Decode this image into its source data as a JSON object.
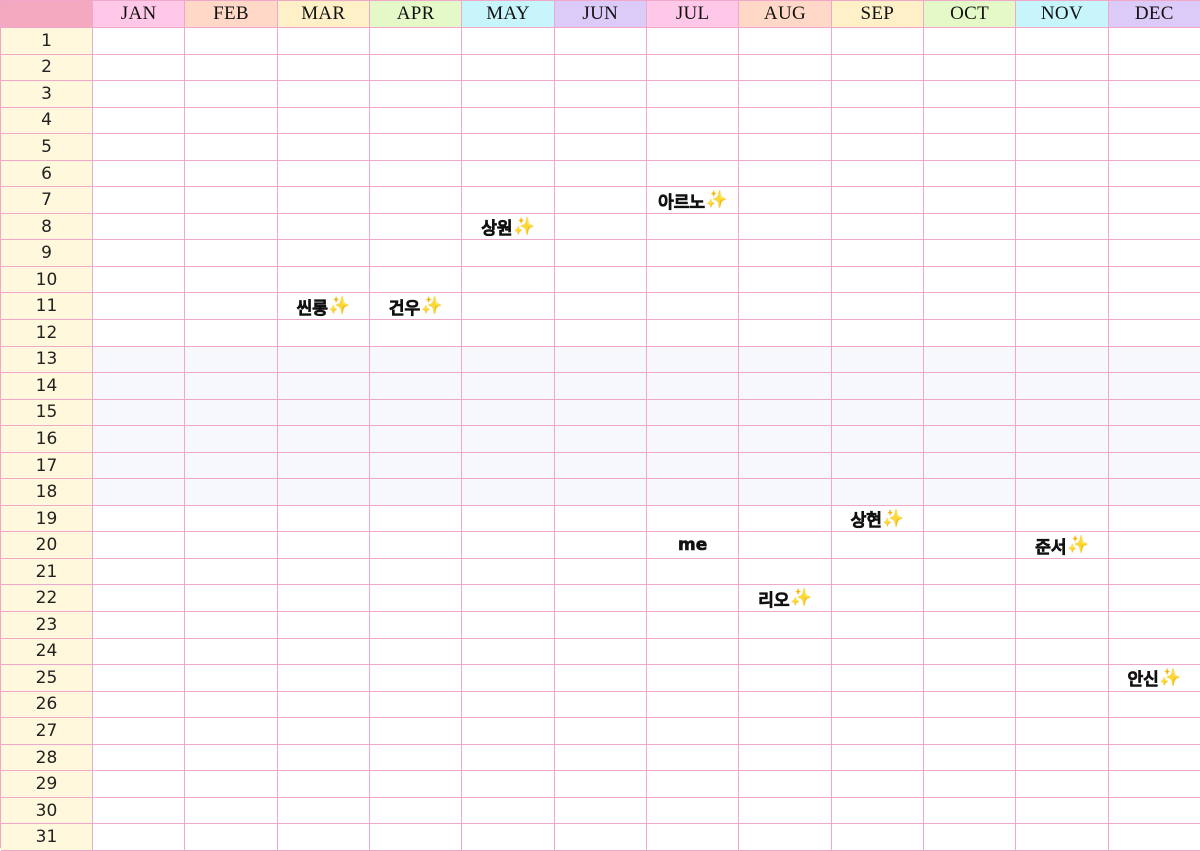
{
  "months": [
    {
      "label": "JAN",
      "color": "#ffc8e8"
    },
    {
      "label": "FEB",
      "color": "#ffd8c8"
    },
    {
      "label": "MAR",
      "color": "#fff0c8"
    },
    {
      "label": "APR",
      "color": "#e4f8c8"
    },
    {
      "label": "MAY",
      "color": "#c8f4fc"
    },
    {
      "label": "JUN",
      "color": "#dccaf8"
    },
    {
      "label": "JUL",
      "color": "#ffc8e8"
    },
    {
      "label": "AUG",
      "color": "#ffd8c8"
    },
    {
      "label": "SEP",
      "color": "#fff0c8"
    },
    {
      "label": "OCT",
      "color": "#e4f8c8"
    },
    {
      "label": "NOV",
      "color": "#c8f4fc"
    },
    {
      "label": "DEC",
      "color": "#dccaf8"
    }
  ],
  "days": [
    "1",
    "2",
    "3",
    "4",
    "5",
    "6",
    "7",
    "8",
    "9",
    "10",
    "11",
    "12",
    "13",
    "14",
    "15",
    "16",
    "17",
    "18",
    "19",
    "20",
    "21",
    "22",
    "23",
    "24",
    "25",
    "26",
    "27",
    "28",
    "29",
    "30",
    "31"
  ],
  "entries": [
    {
      "month": 7,
      "day": 7,
      "name": "아르노",
      "sparkle": "✨"
    },
    {
      "month": 5,
      "day": 8,
      "name": "상원",
      "sparkle": "✨"
    },
    {
      "month": 3,
      "day": 11,
      "name": "씬롱",
      "sparkle": "✨"
    },
    {
      "month": 4,
      "day": 11,
      "name": "건우",
      "sparkle": "✨"
    },
    {
      "month": 9,
      "day": 19,
      "name": "상현",
      "sparkle": "✨"
    },
    {
      "month": 7,
      "day": 20,
      "name": "me",
      "sparkle": ""
    },
    {
      "month": 11,
      "day": 20,
      "name": "준서",
      "sparkle": "✨"
    },
    {
      "month": 8,
      "day": 22,
      "name": "리오",
      "sparkle": "✨"
    },
    {
      "month": 12,
      "day": 25,
      "name": "안신",
      "sparkle": "✨"
    }
  ]
}
